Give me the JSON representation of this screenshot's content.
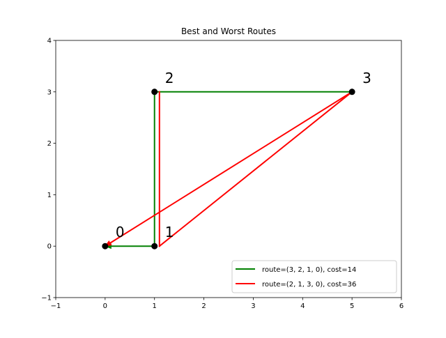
{
  "chart_data": {
    "type": "line",
    "title": "Best and Worst Routes",
    "xlabel": "",
    "ylabel": "",
    "xlim": [
      -1,
      6
    ],
    "ylim": [
      -1,
      4
    ],
    "xticks": [
      -1,
      0,
      1,
      2,
      3,
      4,
      5,
      6
    ],
    "yticks": [
      -1,
      0,
      1,
      2,
      3,
      4
    ],
    "grid": false,
    "legend_position": "lower-right",
    "nodes": [
      {
        "label": "0",
        "x": 0,
        "y": 0
      },
      {
        "label": "1",
        "x": 1,
        "y": 0
      },
      {
        "label": "2",
        "x": 1,
        "y": 3
      },
      {
        "label": "3",
        "x": 5,
        "y": 3
      }
    ],
    "series": [
      {
        "name": "route=(3, 2, 1, 0), cost=14",
        "color": "#008000",
        "route": [
          3,
          2,
          1,
          0
        ],
        "points": [
          [
            5,
            3
          ],
          [
            1,
            3
          ],
          [
            1,
            0
          ],
          [
            0,
            0
          ]
        ]
      },
      {
        "name": "route=(2, 1, 3, 0), cost=36",
        "color": "#ff0000",
        "route": [
          2,
          1,
          3,
          0
        ],
        "points": [
          [
            1.1,
            3
          ],
          [
            1.1,
            0
          ],
          [
            5,
            3
          ],
          [
            0,
            0
          ]
        ]
      }
    ]
  }
}
